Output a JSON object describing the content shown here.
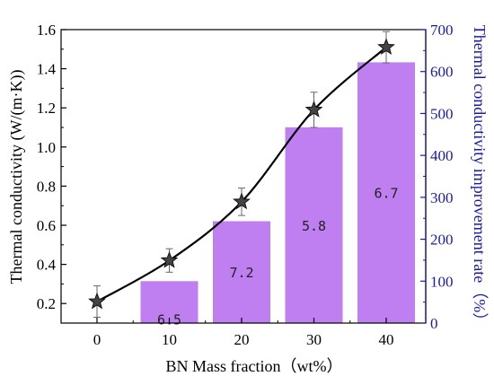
{
  "chart_data": {
    "type": "bar+line",
    "x_categories": [
      "0",
      "10",
      "20",
      "30",
      "40"
    ],
    "xlabel": "BN Mass fraction（wt%）",
    "y_left_label": "Thermal conductivity (W/(m·K))",
    "y_right_label": "Thermal conductivity improvement rate（%）",
    "y_left_range": [
      0.1,
      1.6
    ],
    "y_right_range": [
      0,
      700
    ],
    "y_left_ticks": [
      "0.2",
      "0.4",
      "0.6",
      "0.8",
      "1.0",
      "1.2",
      "1.4",
      "1.6"
    ],
    "y_right_ticks": [
      "0",
      "100",
      "200",
      "300",
      "400",
      "500",
      "600",
      "700"
    ],
    "x_ticks": [
      "0",
      "10",
      "20",
      "30",
      "40"
    ],
    "bars": {
      "axis": "right",
      "x": [
        10,
        20,
        30,
        40
      ],
      "values": [
        100,
        243,
        467,
        622
      ],
      "labels": [
        "6.5",
        "7.2",
        "5.8",
        "6.7"
      ],
      "color": "#bf7ff0"
    },
    "line": {
      "axis": "left",
      "x": [
        0,
        10,
        20,
        30,
        40
      ],
      "values": [
        0.21,
        0.42,
        0.72,
        1.19,
        1.51
      ],
      "errors": [
        0.08,
        0.06,
        0.07,
        0.09,
        0.08
      ],
      "line_color": "#000000",
      "marker": "star",
      "marker_color": "#444444"
    },
    "right_axis_color": "#1a1aaa",
    "grid": false
  }
}
